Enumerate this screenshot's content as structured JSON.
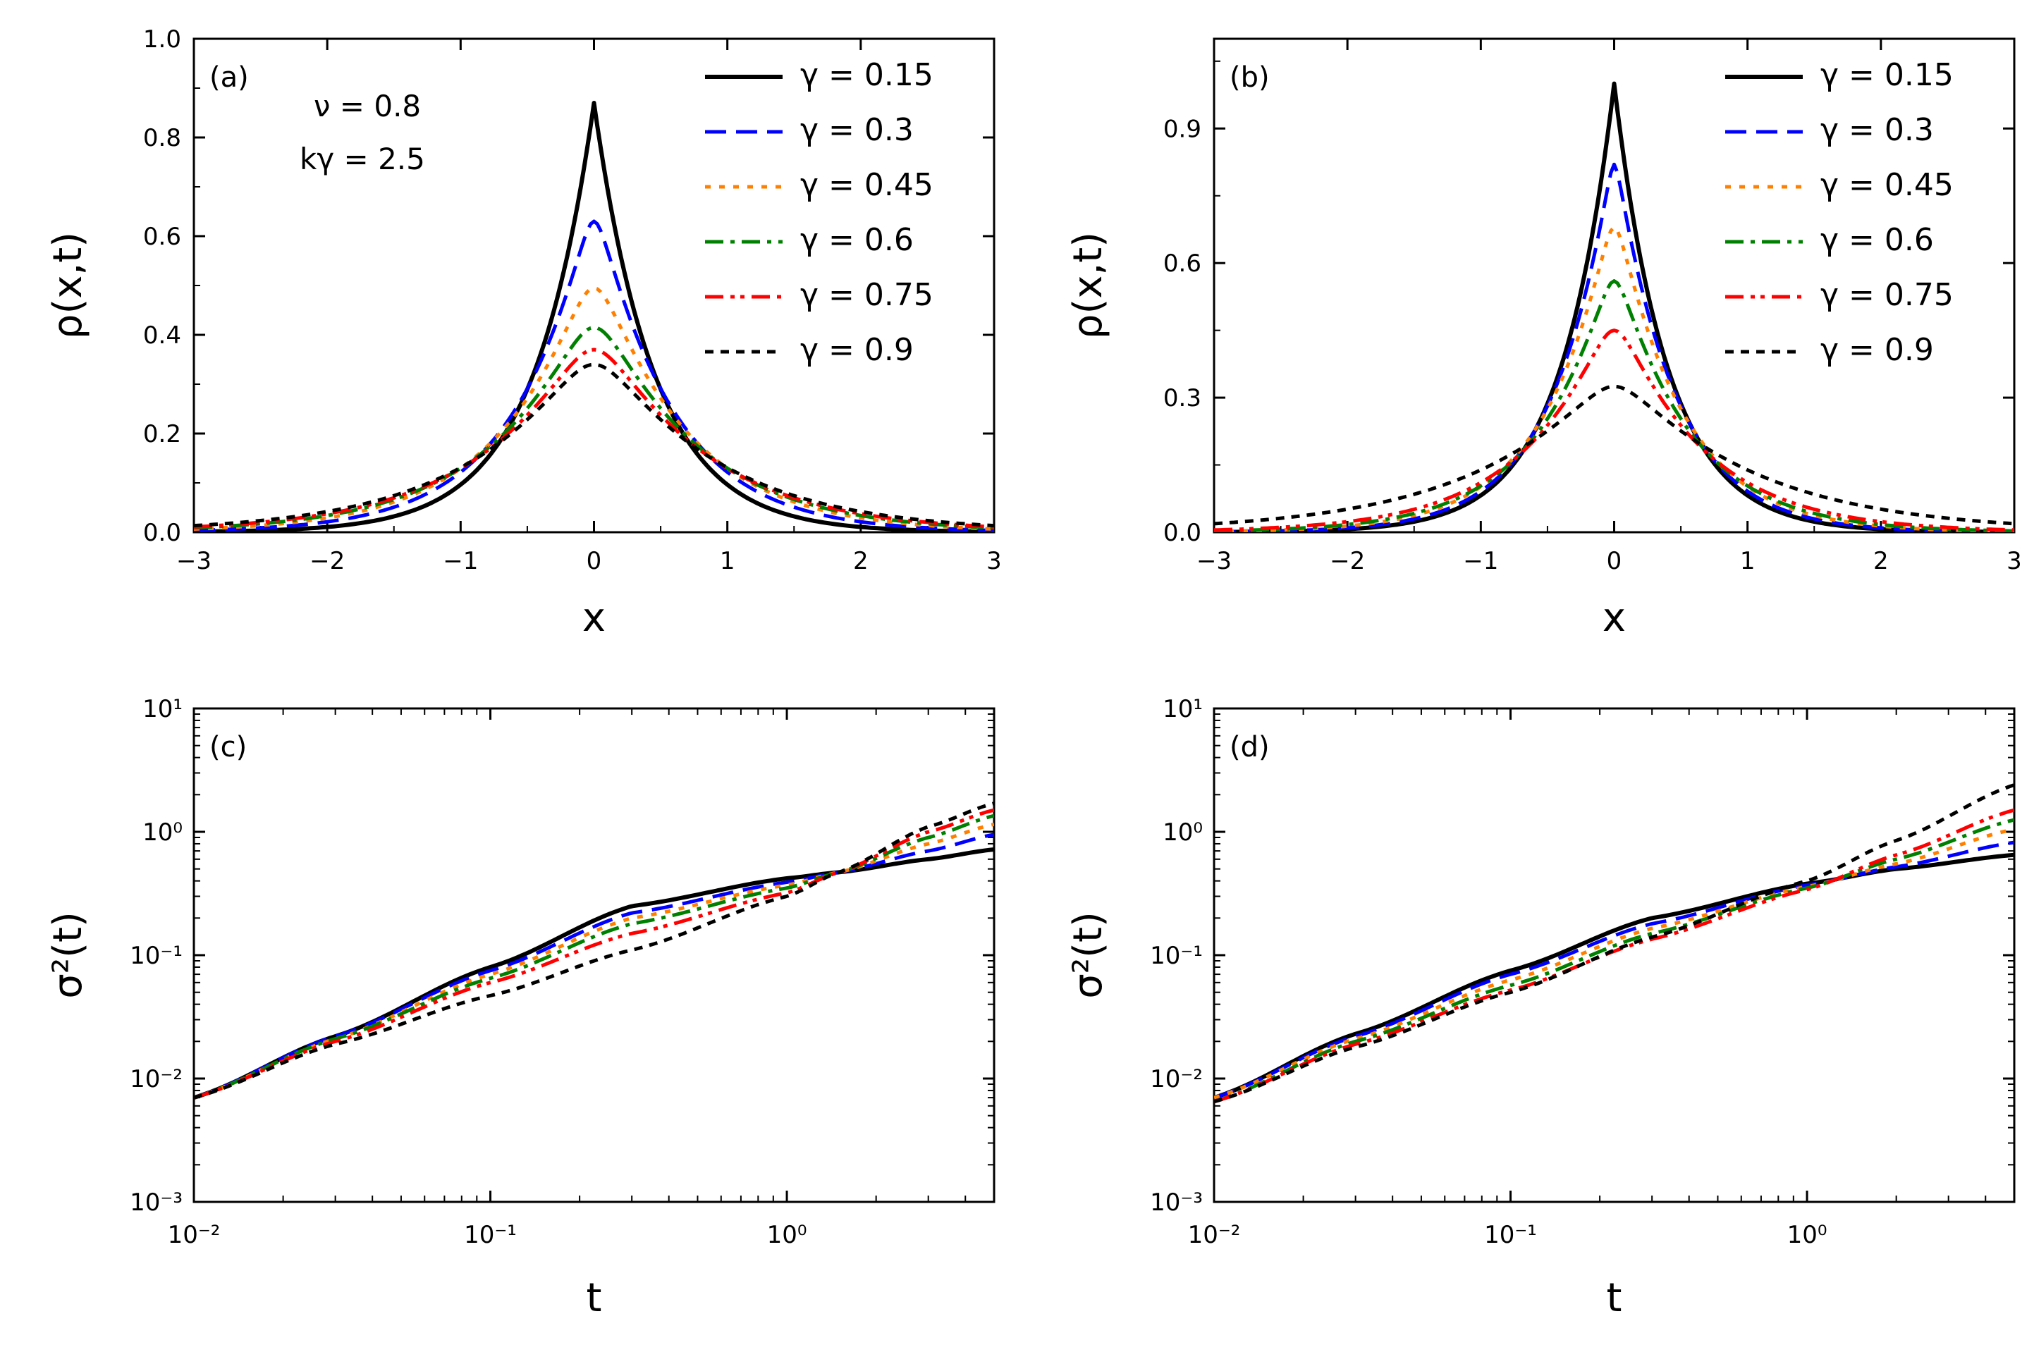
{
  "series_styles": [
    {
      "label": "γ = 0.15",
      "color": "#000000",
      "dash": "",
      "width": 6
    },
    {
      "label": "γ = 0.3",
      "color": "#0000ff",
      "dash": "30,14",
      "width": 5
    },
    {
      "label": "γ = 0.45",
      "color": "#ff8000",
      "dash": "8,12",
      "width": 5
    },
    {
      "label": "γ = 0.6",
      "color": "#008000",
      "dash": "26,10,6,10",
      "width": 5
    },
    {
      "label": "γ = 0.75",
      "color": "#ff0000",
      "dash": "26,10,6,8,6,10",
      "width": 5
    },
    {
      "label": "γ = 0.9",
      "color": "#000000",
      "dash": "12,10",
      "width": 5
    }
  ],
  "chart_data": [
    {
      "type": "line",
      "panel_label": "(a)",
      "xlabel": "x",
      "ylabel": "ρ(x,t)",
      "xlim": [
        -3,
        3
      ],
      "ylim": [
        0,
        1
      ],
      "xticks": [
        "−3",
        "−2",
        "−1",
        "0",
        "1",
        "2",
        "3"
      ],
      "yticks": [
        "0.0",
        "0.2",
        "0.4",
        "0.6",
        "0.8",
        "1.0"
      ],
      "annotation_nu": "ν = 0.8",
      "annotation_k": "kγ = 2.5",
      "series": [
        {
          "name": "γ = 0.15",
          "peak": 0.87,
          "decay": 2.2,
          "sharp": 1.0
        },
        {
          "name": "γ = 0.3",
          "peak": 0.63,
          "decay": 1.75,
          "sharp": 0.75
        },
        {
          "name": "γ = 0.45",
          "peak": 0.495,
          "decay": 1.5,
          "sharp": 0.55
        },
        {
          "name": "γ = 0.6",
          "peak": 0.415,
          "decay": 1.35,
          "sharp": 0.4
        },
        {
          "name": "γ = 0.75",
          "peak": 0.37,
          "decay": 1.25,
          "sharp": 0.3
        },
        {
          "name": "γ = 0.9",
          "peak": 0.34,
          "decay": 1.15,
          "sharp": 0.25
        }
      ]
    },
    {
      "type": "line",
      "panel_label": "(b)",
      "xlabel": "x",
      "ylabel": "ρ(x,t)",
      "xlim": [
        -3,
        3
      ],
      "ylim": [
        0,
        1.1
      ],
      "xticks": [
        "−3",
        "−2",
        "−1",
        "0",
        "1",
        "2",
        "3"
      ],
      "yticks": [
        "0.0",
        "0.3",
        "0.6",
        "0.9"
      ],
      "series": [
        {
          "name": "γ = 0.15",
          "peak": 1.0,
          "decay": 2.5,
          "sharp": 1.0
        },
        {
          "name": "γ = 0.3",
          "peak": 0.82,
          "decay": 2.25,
          "sharp": 0.9
        },
        {
          "name": "γ = 0.45",
          "peak": 0.68,
          "decay": 2.0,
          "sharp": 0.8
        },
        {
          "name": "γ = 0.6",
          "peak": 0.56,
          "decay": 1.8,
          "sharp": 0.75
        },
        {
          "name": "γ = 0.75",
          "peak": 0.45,
          "decay": 1.55,
          "sharp": 0.6
        },
        {
          "name": "γ = 0.9",
          "peak": 0.325,
          "decay": 1.0,
          "sharp": 0.35
        }
      ]
    },
    {
      "type": "line",
      "panel_label": "(c)",
      "xlabel": "t",
      "ylabel": "σ²(t)",
      "xscale": "log",
      "yscale": "log",
      "xlim": [
        0.01,
        5
      ],
      "ylim": [
        0.001,
        10
      ],
      "xticks": [
        "10⁻²",
        "10⁻¹",
        "10⁰"
      ],
      "yticks": [
        "10⁻³",
        "10⁻²",
        "10⁻¹",
        "10⁰",
        "10¹"
      ],
      "series": [
        {
          "name": "γ = 0.15",
          "t": [
            0.01,
            0.03,
            0.1,
            0.3,
            1,
            1.5,
            3,
            5
          ],
          "y": [
            0.007,
            0.022,
            0.08,
            0.25,
            0.42,
            0.47,
            0.6,
            0.72
          ]
        },
        {
          "name": "γ = 0.3",
          "t": [
            0.01,
            0.03,
            0.1,
            0.3,
            1,
            1.5,
            3,
            5
          ],
          "y": [
            0.007,
            0.022,
            0.075,
            0.22,
            0.39,
            0.47,
            0.7,
            0.95
          ]
        },
        {
          "name": "γ = 0.45",
          "t": [
            0.01,
            0.03,
            0.1,
            0.3,
            1,
            1.5,
            3,
            5
          ],
          "y": [
            0.007,
            0.021,
            0.07,
            0.2,
            0.37,
            0.47,
            0.8,
            1.15
          ]
        },
        {
          "name": "γ = 0.6",
          "t": [
            0.01,
            0.03,
            0.1,
            0.3,
            1,
            1.5,
            3,
            5
          ],
          "y": [
            0.007,
            0.021,
            0.065,
            0.18,
            0.35,
            0.47,
            0.9,
            1.35
          ]
        },
        {
          "name": "γ = 0.75",
          "t": [
            0.01,
            0.03,
            0.1,
            0.3,
            1,
            1.5,
            3,
            5
          ],
          "y": [
            0.007,
            0.02,
            0.06,
            0.15,
            0.32,
            0.47,
            1.0,
            1.5
          ]
        },
        {
          "name": "γ = 0.9",
          "t": [
            0.01,
            0.03,
            0.1,
            0.3,
            1,
            1.5,
            3,
            5
          ],
          "y": [
            0.007,
            0.019,
            0.047,
            0.11,
            0.3,
            0.47,
            1.1,
            1.7
          ]
        }
      ]
    },
    {
      "type": "line",
      "panel_label": "(d)",
      "xlabel": "t",
      "ylabel": "σ²(t)",
      "xscale": "log",
      "yscale": "log",
      "xlim": [
        0.01,
        5
      ],
      "ylim": [
        0.001,
        10
      ],
      "xticks": [
        "10⁻²",
        "10⁻¹",
        "10⁰"
      ],
      "yticks": [
        "10⁻³",
        "10⁻²",
        "10⁻¹",
        "10⁰",
        "10¹"
      ],
      "series": [
        {
          "name": "γ = 0.15",
          "t": [
            0.01,
            0.03,
            0.1,
            0.3,
            1,
            2,
            5
          ],
          "y": [
            0.007,
            0.023,
            0.075,
            0.2,
            0.38,
            0.5,
            0.65
          ]
        },
        {
          "name": "γ = 0.3",
          "t": [
            0.01,
            0.03,
            0.1,
            0.3,
            1,
            2,
            5
          ],
          "y": [
            0.007,
            0.022,
            0.07,
            0.18,
            0.37,
            0.52,
            0.82
          ]
        },
        {
          "name": "γ = 0.45",
          "t": [
            0.01,
            0.03,
            0.1,
            0.3,
            1,
            2,
            5
          ],
          "y": [
            0.007,
            0.021,
            0.063,
            0.165,
            0.36,
            0.55,
            1.05
          ]
        },
        {
          "name": "γ = 0.6",
          "t": [
            0.01,
            0.03,
            0.1,
            0.3,
            1,
            2,
            5
          ],
          "y": [
            0.0065,
            0.02,
            0.057,
            0.15,
            0.35,
            0.6,
            1.25
          ]
        },
        {
          "name": "γ = 0.75",
          "t": [
            0.01,
            0.03,
            0.1,
            0.3,
            1,
            2,
            5
          ],
          "y": [
            0.0065,
            0.019,
            0.052,
            0.135,
            0.34,
            0.65,
            1.5
          ]
        },
        {
          "name": "γ = 0.9",
          "t": [
            0.01,
            0.03,
            0.1,
            0.3,
            1,
            2,
            5
          ],
          "y": [
            0.0065,
            0.018,
            0.05,
            0.14,
            0.4,
            0.85,
            2.4
          ]
        }
      ]
    }
  ]
}
